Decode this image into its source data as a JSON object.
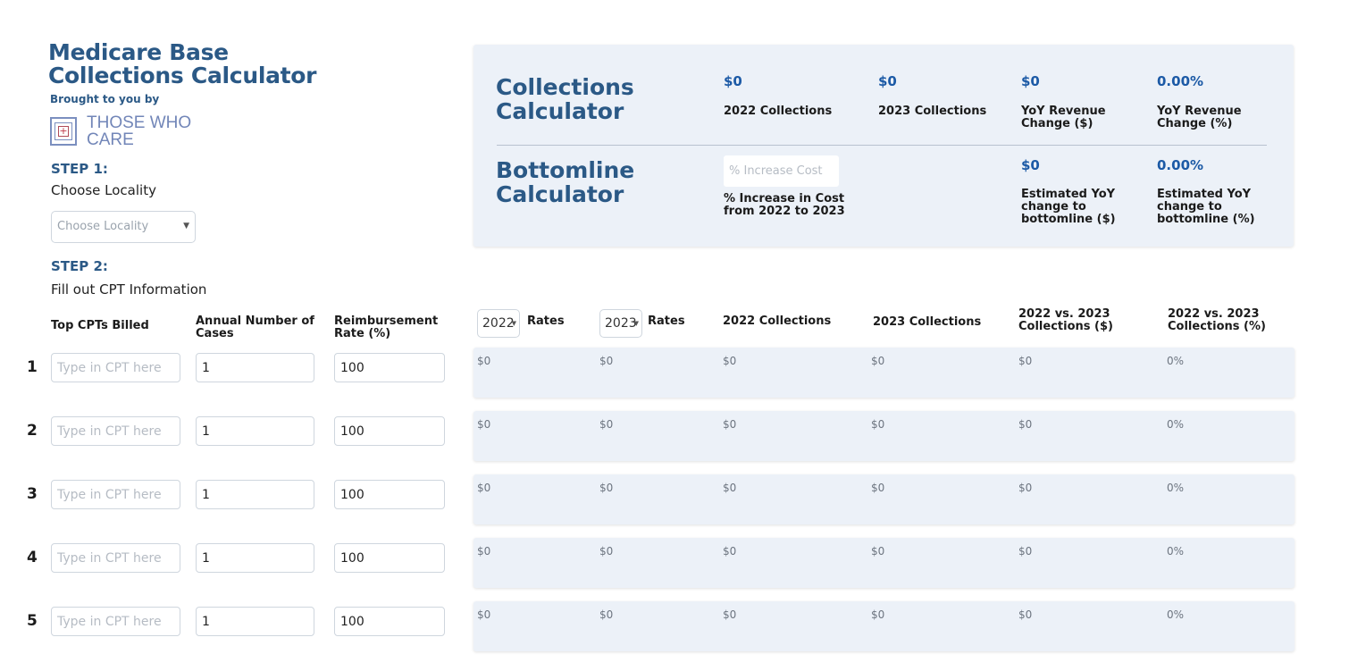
{
  "app": {
    "title": "Medicare Base Collections Calculator",
    "brought_by": "Brought to you by",
    "logo_line1": "THOSE WHO",
    "logo_line2": "CARE"
  },
  "step1": {
    "title": "STEP 1:",
    "subtitle": "Choose Locality",
    "locality_placeholder": "Choose Locality"
  },
  "step2": {
    "title": "STEP 2:",
    "subtitle": "Fill out CPT Information"
  },
  "summary": {
    "collections_title": "Collections Calculator",
    "bottomline_title": "Bottomline Calculator",
    "collections_2022_value": "$0",
    "collections_2022_label": "2022 Collections",
    "collections_2023_value": "$0",
    "collections_2023_label": "2023 Collections",
    "yoy_revenue_dollar_value": "$0",
    "yoy_revenue_dollar_label": "YoY Revenue Change ($)",
    "yoy_revenue_pct_value": "0.00%",
    "yoy_revenue_pct_label": "YoY Revenue Change (%)",
    "cost_placeholder": "% Increase Cost",
    "cost_label": "% Increase in Cost from 2022 to 2023",
    "bottomline_dollar_value": "$0",
    "bottomline_dollar_label": "Estimated YoY change to bottomline ($)",
    "bottomline_pct_value": "0.00%",
    "bottomline_pct_label": "Estimated YoY change to bottomline (%)"
  },
  "table": {
    "headers": {
      "cpt": "Top CPTs Billed",
      "cases": "Annual Number of Cases",
      "rate": "Reimbursement Rate (%)",
      "year1": "2022",
      "rates1": "Rates",
      "year2": "2023",
      "rates2": "Rates",
      "col_2022": "2022 Collections",
      "col_2023": "2023 Collections",
      "vs_dollar": "2022 vs. 2023 Collections ($)",
      "vs_pct": "2022 vs. 2023 Collections (%)"
    },
    "cpt_placeholder": "Type in CPT here",
    "rows": [
      {
        "num": "1",
        "cases": "1",
        "rate": "100",
        "r2022": "$0",
        "r2023": "$0",
        "c2022": "$0",
        "c2023": "$0",
        "diff": "$0",
        "pct": "0%"
      },
      {
        "num": "2",
        "cases": "1",
        "rate": "100",
        "r2022": "$0",
        "r2023": "$0",
        "c2022": "$0",
        "c2023": "$0",
        "diff": "$0",
        "pct": "0%"
      },
      {
        "num": "3",
        "cases": "1",
        "rate": "100",
        "r2022": "$0",
        "r2023": "$0",
        "c2022": "$0",
        "c2023": "$0",
        "diff": "$0",
        "pct": "0%"
      },
      {
        "num": "4",
        "cases": "1",
        "rate": "100",
        "r2022": "$0",
        "r2023": "$0",
        "c2022": "$0",
        "c2023": "$0",
        "diff": "$0",
        "pct": "0%"
      },
      {
        "num": "5",
        "cases": "1",
        "rate": "100",
        "r2022": "$0",
        "r2023": "$0",
        "c2022": "$0",
        "c2023": "$0",
        "diff": "$0",
        "pct": "0%"
      }
    ]
  }
}
